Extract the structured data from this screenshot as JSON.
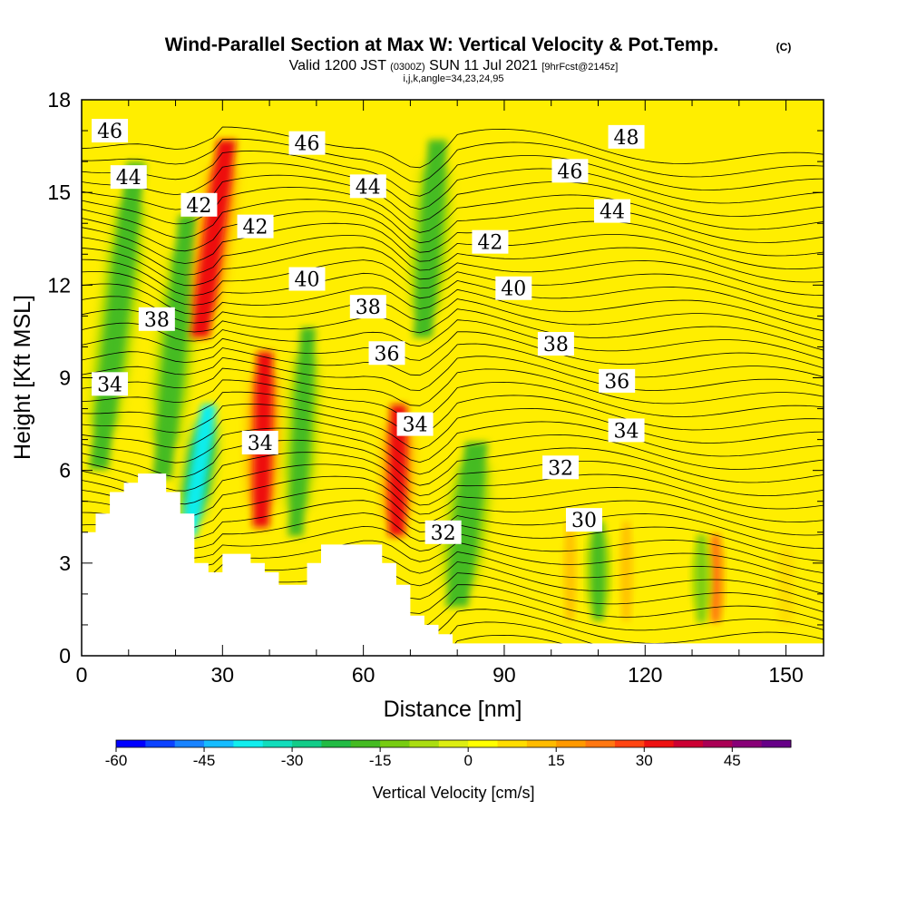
{
  "title": {
    "main": "Wind-Parallel Section at Max W: Vertical Velocity & Pot.Temp.",
    "copyright": "(C)",
    "valid_prefix": "Valid 1200 JST",
    "valid_utc": "(0300Z)",
    "valid_date": "SUN 11 Jul 2021",
    "forecast": "[9hrFcst@2145z]",
    "indices": "i,j,k,angle=34,23,24,95"
  },
  "chart_data": {
    "type": "heatmap",
    "xlabel": "Distance [nm]",
    "ylabel": "Height [Kft MSL]",
    "xlim": [
      0,
      158
    ],
    "ylim": [
      0,
      18
    ],
    "x_ticks": [
      "0",
      "30",
      "60",
      "90",
      "120",
      "150"
    ],
    "x_tick_values": [
      0,
      30,
      60,
      90,
      120,
      150
    ],
    "y_ticks": [
      "0",
      "3",
      "6",
      "9",
      "12",
      "15",
      "18"
    ],
    "y_tick_values": [
      0,
      3,
      6,
      9,
      12,
      15,
      18
    ],
    "background_field": "vertical velocity (cm/s), mostly 0 to +10 outside updraft/downdraft bands",
    "velocity_bands": [
      {
        "x": 2,
        "ybottom": 4,
        "ytop": 18,
        "w": -22,
        "width": 2.5,
        "tilt": 0.8
      },
      {
        "x": 16,
        "ybottom": 4,
        "ytop": 16,
        "w": -22,
        "width": 2.5,
        "tilt": 0.65
      },
      {
        "x": 22,
        "ybottom": 3,
        "ytop": 9,
        "w": -45,
        "width": 2,
        "tilt": 1.0
      },
      {
        "x": 24,
        "ybottom": 9,
        "ytop": 18,
        "w": 40,
        "width": 2.5,
        "tilt": 0.9
      },
      {
        "x": 38,
        "ybottom": 3,
        "ytop": 11,
        "w": 42,
        "width": 2.2,
        "tilt": 0.15
      },
      {
        "x": 45,
        "ybottom": 2.5,
        "ytop": 12,
        "w": -22,
        "width": 2,
        "tilt": 0.4
      },
      {
        "x": 67,
        "ybottom": 3,
        "ytop": 9,
        "w": 38,
        "width": 2.2,
        "tilt": 0.1
      },
      {
        "x": 72,
        "ybottom": 9,
        "ytop": 18,
        "w": -25,
        "width": 2.5,
        "tilt": 0.5
      },
      {
        "x": 79,
        "ybottom": 0.5,
        "ytop": 8,
        "w": -22,
        "width": 3,
        "tilt": 0.8
      },
      {
        "x": 110,
        "ybottom": 0.5,
        "ytop": 5,
        "w": -25,
        "width": 1.5,
        "tilt": 0
      },
      {
        "x": 135,
        "ybottom": 0.5,
        "ytop": 4.5,
        "w": 28,
        "width": 1.2,
        "tilt": 0
      },
      {
        "x": 132,
        "ybottom": 0.5,
        "ytop": 4.5,
        "w": -15,
        "width": 1.2,
        "tilt": 0
      },
      {
        "x": 104,
        "ybottom": 0.5,
        "ytop": 5,
        "w": 15,
        "width": 1.0,
        "tilt": 0
      },
      {
        "x": 116,
        "ybottom": 0.5,
        "ytop": 5,
        "w": 15,
        "width": 1.0,
        "tilt": 0
      },
      {
        "x": 150,
        "ybottom": 0.5,
        "ytop": 4,
        "w": 12,
        "width": 1.5,
        "tilt": 0
      }
    ],
    "terrain_profile": [
      [
        0,
        4.0
      ],
      [
        3,
        4.0
      ],
      [
        3,
        4.6
      ],
      [
        6,
        4.6
      ],
      [
        6,
        5.3
      ],
      [
        9,
        5.3
      ],
      [
        9,
        5.6
      ],
      [
        12,
        5.6
      ],
      [
        12,
        5.9
      ],
      [
        18,
        5.9
      ],
      [
        18,
        5.3
      ],
      [
        21,
        5.3
      ],
      [
        21,
        4.6
      ],
      [
        24,
        4.6
      ],
      [
        24,
        3.0
      ],
      [
        27,
        3.0
      ],
      [
        27,
        2.7
      ],
      [
        30,
        2.7
      ],
      [
        30,
        3.3
      ],
      [
        36,
        3.3
      ],
      [
        36,
        3.0
      ],
      [
        39,
        3.0
      ],
      [
        39,
        2.7
      ],
      [
        42,
        2.7
      ],
      [
        42,
        2.3
      ],
      [
        48,
        2.3
      ],
      [
        48,
        3.0
      ],
      [
        51,
        3.0
      ],
      [
        51,
        3.6
      ],
      [
        64,
        3.6
      ],
      [
        64,
        3.0
      ],
      [
        67,
        3.0
      ],
      [
        67,
        2.3
      ],
      [
        70,
        2.3
      ],
      [
        70,
        1.3
      ],
      [
        73,
        1.3
      ],
      [
        73,
        1.0
      ],
      [
        76,
        1.0
      ],
      [
        76,
        0.7
      ],
      [
        79,
        0.7
      ],
      [
        79,
        0.4
      ],
      [
        158,
        0.4
      ]
    ],
    "theta_contours": [
      {
        "level": 30,
        "label": "30",
        "label_pos": [
          107,
          4.4
        ]
      },
      {
        "level": 32,
        "label": "32",
        "label_pos": [
          77,
          4.0
        ]
      },
      {
        "level": 32,
        "label": "32",
        "label_pos": [
          102,
          6.1
        ]
      },
      {
        "level": 34,
        "label": "34",
        "label_pos": [
          38,
          6.9
        ]
      },
      {
        "level": 34,
        "label": "34",
        "label_pos": [
          71,
          7.5
        ]
      },
      {
        "level": 34,
        "label": "34",
        "label_pos": [
          116,
          7.3
        ]
      },
      {
        "level": 34,
        "label": "34",
        "label_pos": [
          6,
          8.8
        ]
      },
      {
        "level": 36,
        "label": "36",
        "label_pos": [
          65,
          9.8
        ]
      },
      {
        "level": 36,
        "label": "36",
        "label_pos": [
          114,
          8.9
        ]
      },
      {
        "level": 38,
        "label": "38",
        "label_pos": [
          16,
          10.9
        ]
      },
      {
        "level": 38,
        "label": "38",
        "label_pos": [
          61,
          11.3
        ]
      },
      {
        "level": 38,
        "label": "38",
        "label_pos": [
          101,
          10.1
        ]
      },
      {
        "level": 40,
        "label": "40",
        "label_pos": [
          48,
          12.2
        ]
      },
      {
        "level": 40,
        "label": "40",
        "label_pos": [
          92,
          11.9
        ]
      },
      {
        "level": 42,
        "label": "42",
        "label_pos": [
          25,
          14.6
        ]
      },
      {
        "level": 42,
        "label": "42",
        "label_pos": [
          37,
          13.9
        ]
      },
      {
        "level": 42,
        "label": "42",
        "label_pos": [
          87,
          13.4
        ]
      },
      {
        "level": 44,
        "label": "44",
        "label_pos": [
          10,
          15.5
        ]
      },
      {
        "level": 44,
        "label": "44",
        "label_pos": [
          61,
          15.2
        ]
      },
      {
        "level": 44,
        "label": "44",
        "label_pos": [
          113,
          14.4
        ]
      },
      {
        "level": 46,
        "label": "46",
        "label_pos": [
          6,
          17.0
        ]
      },
      {
        "level": 46,
        "label": "46",
        "label_pos": [
          48,
          16.6
        ]
      },
      {
        "level": 46,
        "label": "46",
        "label_pos": [
          104,
          15.7
        ]
      },
      {
        "level": 48,
        "label": "48",
        "label_pos": [
          116,
          16.8
        ]
      }
    ]
  },
  "colorbar": {
    "title": "Vertical Velocity [cm/s]",
    "labels": [
      "-60",
      "-45",
      "-30",
      "-15",
      "0",
      "15",
      "30",
      "45"
    ],
    "label_values": [
      -60,
      -45,
      -30,
      -15,
      0,
      15,
      30,
      45
    ],
    "range": [
      -60,
      55
    ],
    "step": 5,
    "colors": [
      "#0000ff",
      "#0c42ff",
      "#1883ff",
      "#15bcff",
      "#11eeee",
      "#11ddbb",
      "#11cc88",
      "#22bb44",
      "#44bb22",
      "#77cc11",
      "#aadd11",
      "#ddee11",
      "#ffff00",
      "#ffdd00",
      "#ffbb00",
      "#ff9900",
      "#ff7711",
      "#ff4411",
      "#ee1111",
      "#cc0033",
      "#aa0055",
      "#880077",
      "#660088"
    ]
  }
}
